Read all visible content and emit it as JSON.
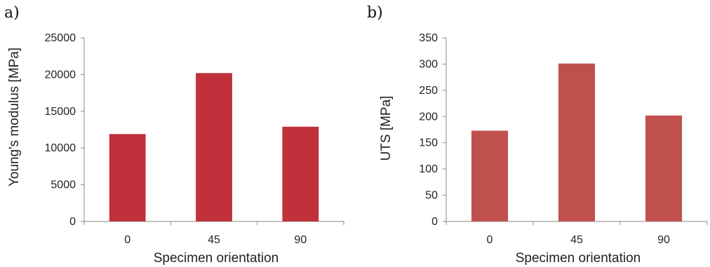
{
  "chart_data": [
    {
      "panel_label": "a)",
      "type": "bar",
      "categories": [
        "0",
        "45",
        "90"
      ],
      "values": [
        11900,
        20200,
        12900
      ],
      "xlabel": "Specimen orientation",
      "ylabel": "Young's modulus [MPa]",
      "ylim": [
        0,
        25000
      ],
      "yticks": [
        "0",
        "5000",
        "10000",
        "15000",
        "20000",
        "25000"
      ],
      "grid": false,
      "bar_color": "#c0313b"
    },
    {
      "panel_label": "b)",
      "type": "bar",
      "categories": [
        "0",
        "45",
        "90"
      ],
      "values": [
        173,
        301,
        202
      ],
      "xlabel": "Specimen orientation",
      "ylabel": "UTS [MPa]",
      "ylim": [
        0,
        350
      ],
      "yticks": [
        "0",
        "50",
        "100",
        "150",
        "200",
        "250",
        "300",
        "350"
      ],
      "grid": false,
      "bar_color": "#c0504d"
    }
  ]
}
